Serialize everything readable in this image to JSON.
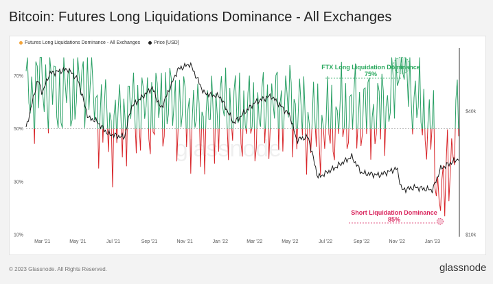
{
  "title": "Bitcoin: Futures Long Liquidations Dominance - All Exchanges",
  "footer": "© 2023 Glassnode. All Rights Reserved.",
  "brand": "glassnode",
  "watermark": "glassnode",
  "colors": {
    "dominance_above": "#2aa065",
    "dominance_below": "#d8262a",
    "price": "#1a1a1a",
    "legend_dominance": "#f2a33a",
    "annotation_green": "#27a85c",
    "annotation_red": "#d9245c"
  },
  "chart_data": {
    "type": "line",
    "title": "Bitcoin: Futures Long Liquidations Dominance - All Exchanges",
    "x_range": [
      "2021-02-01",
      "2023-02-15"
    ],
    "x_ticks": [
      "Mar '21",
      "May '21",
      "Jul '21",
      "Sep '21",
      "Nov '21",
      "Jan '22",
      "Mar '22",
      "May '22",
      "Jul '22",
      "Sep '22",
      "Nov '22",
      "Jan '23"
    ],
    "y_left_ticks": [
      "10%",
      "30%",
      "50%",
      "70%"
    ],
    "y_left_range": [
      0.1,
      0.8
    ],
    "y_right_ticks": [
      "$10k",
      "$40k"
    ],
    "y_right_scale": "log",
    "y_right_range": [
      10000,
      80000
    ],
    "grid": false,
    "legend_position": "top-left",
    "legend": [
      "Futures Long Liquidations Dominance - All Exchanges",
      "Price [USD]"
    ],
    "series": [
      {
        "name": "Futures Long Liquidations Dominance - All Exchanges",
        "axis": "left",
        "baseline": 0.5,
        "dates": [
          "2021-02-01",
          "2021-03-01",
          "2021-04-01",
          "2021-05-01",
          "2021-05-19",
          "2021-06-01",
          "2021-07-01",
          "2021-08-01",
          "2021-09-01",
          "2021-10-01",
          "2021-11-01",
          "2021-12-01",
          "2022-01-01",
          "2022-02-01",
          "2022-03-01",
          "2022-04-01",
          "2022-05-01",
          "2022-06-01",
          "2022-07-01",
          "2022-08-01",
          "2022-09-01",
          "2022-10-01",
          "2022-11-01",
          "2022-11-09",
          "2022-12-01",
          "2023-01-01",
          "2023-01-14",
          "2023-02-01",
          "2023-02-15"
        ],
        "values": [
          0.62,
          0.68,
          0.62,
          0.66,
          0.7,
          0.58,
          0.5,
          0.58,
          0.56,
          0.6,
          0.56,
          0.52,
          0.58,
          0.56,
          0.54,
          0.58,
          0.6,
          0.52,
          0.5,
          0.56,
          0.57,
          0.55,
          0.66,
          0.75,
          0.62,
          0.48,
          0.15,
          0.4,
          0.58
        ]
      },
      {
        "name": "Price [USD]",
        "axis": "right",
        "dates": [
          "2021-02-01",
          "2021-02-21",
          "2021-03-01",
          "2021-03-13",
          "2021-04-14",
          "2021-05-01",
          "2021-05-19",
          "2021-06-01",
          "2021-06-22",
          "2021-07-20",
          "2021-08-01",
          "2021-09-06",
          "2021-09-21",
          "2021-10-20",
          "2021-11-10",
          "2021-12-04",
          "2022-01-01",
          "2022-01-24",
          "2022-03-01",
          "2022-03-29",
          "2022-05-01",
          "2022-05-12",
          "2022-06-01",
          "2022-06-18",
          "2022-07-15",
          "2022-08-15",
          "2022-09-01",
          "2022-10-01",
          "2022-11-01",
          "2022-11-09",
          "2022-12-01",
          "2023-01-01",
          "2023-01-15",
          "2023-02-15"
        ],
        "values": [
          33000,
          57000,
          49000,
          61000,
          64000,
          57000,
          37000,
          36000,
          31000,
          29800,
          42000,
          52000,
          41000,
          64000,
          68000,
          49000,
          47000,
          35000,
          44000,
          47500,
          38000,
          29000,
          30000,
          19000,
          21000,
          24000,
          20000,
          19500,
          21000,
          16500,
          17000,
          16500,
          21000,
          23500
        ]
      }
    ],
    "annotations": [
      {
        "label": "FTX Long Liquidation Dominance",
        "value": "75%",
        "date": "2022-11-09",
        "y": 0.75
      },
      {
        "label": "Short Liquidation Dominance",
        "value": "85%",
        "date": "2023-01-14",
        "y": 0.15
      }
    ]
  }
}
